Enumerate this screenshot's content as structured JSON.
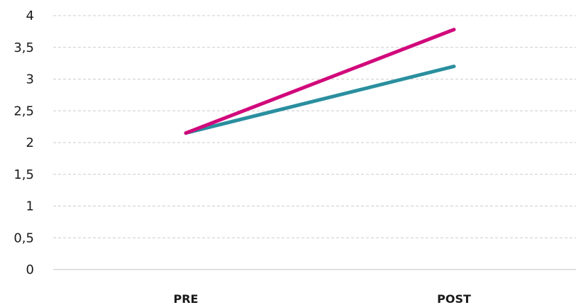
{
  "chart_data": {
    "type": "line",
    "categories": [
      "PRE",
      "POST"
    ],
    "series": [
      {
        "values": [
          2.15,
          3.2
        ],
        "color": "#2a8f9f"
      },
      {
        "values": [
          2.15,
          3.78
        ],
        "color": "#d1097b"
      }
    ],
    "ylim": [
      0,
      4
    ],
    "yticks": [
      "0",
      "0,5",
      "1",
      "1,5",
      "2",
      "2,5",
      "3",
      "3,5",
      "4"
    ],
    "ytick_values": [
      0,
      0.5,
      1,
      1.5,
      2,
      2.5,
      3,
      3.5,
      4
    ],
    "grid": true,
    "legend": "none"
  }
}
